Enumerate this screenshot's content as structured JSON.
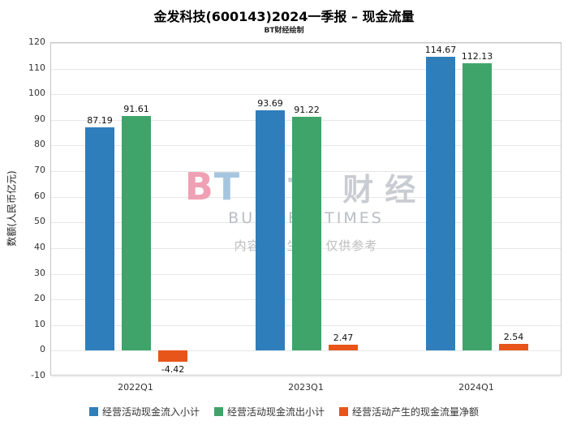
{
  "chart_data": {
    "type": "bar",
    "title": "金发科技(600143)2024一季报 – 现金流量",
    "subtitle": "BT财经绘制",
    "categories": [
      "2022Q1",
      "2023Q1",
      "2024Q1"
    ],
    "series": [
      {
        "name": "经营活动现金流入小计",
        "color": "#2e7ebc",
        "values": [
          87.19,
          93.69,
          114.67
        ]
      },
      {
        "name": "经营活动现金流出小计",
        "color": "#3fa46a",
        "values": [
          91.61,
          91.22,
          112.13
        ]
      },
      {
        "name": "经营活动产生的现金流量净额",
        "color": "#e8551a",
        "values": [
          -4.42,
          2.47,
          2.54
        ]
      }
    ],
    "xlabel": "",
    "ylabel": "数额(人民币亿元)",
    "ylim": [
      -10,
      120
    ],
    "ytick_step": 10,
    "grid": true,
    "legend_position": "bottom"
  },
  "watermark": {
    "logo_text": "BT 财经",
    "sub_text": "BUSINESSTIMES",
    "ai_note": "内容由AI生成，仅供参考"
  }
}
